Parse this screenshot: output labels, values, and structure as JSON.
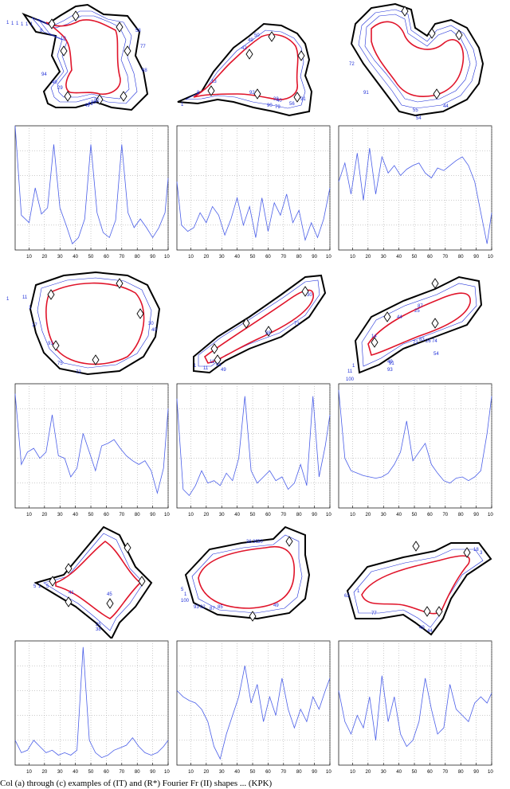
{
  "caption": "Col (a) through (c) examples of (IT) and (R*) Fourier Fr (II) shapes ... (KPK)",
  "colors": {
    "contour": "#000000",
    "series": "#4a5ee8",
    "mean_shape": "#e0142a",
    "inner_contours": "#2030d8",
    "grid": "#9a9a9a",
    "marker": "#000000"
  },
  "chart_data": [
    {
      "type": "line",
      "panel": "row1-col1",
      "xlim": [
        1,
        100
      ],
      "x_ticks": [
        10,
        20,
        30,
        40,
        50,
        60,
        70,
        80,
        90,
        100
      ],
      "x_tick_labels": [
        "10",
        "20",
        "30",
        "40",
        "50",
        "60",
        "70",
        "80",
        "90",
        "100"
      ],
      "series": [
        {
          "x": [
            1,
            5,
            10,
            14,
            18,
            22,
            26,
            30,
            34,
            38,
            42,
            46,
            50,
            54,
            58,
            62,
            66,
            70,
            74,
            78,
            82,
            86,
            90,
            94,
            98,
            100
          ],
          "values": [
            1.0,
            0.28,
            0.22,
            0.5,
            0.29,
            0.34,
            0.85,
            0.34,
            0.2,
            0.05,
            0.1,
            0.25,
            0.85,
            0.3,
            0.14,
            0.1,
            0.24,
            0.85,
            0.3,
            0.18,
            0.25,
            0.18,
            0.1,
            0.18,
            0.3,
            0.58
          ]
        }
      ]
    },
    {
      "type": "line",
      "panel": "row1-col2",
      "xlim": [
        1,
        100
      ],
      "x_ticks": [
        10,
        20,
        30,
        40,
        50,
        60,
        70,
        80,
        90,
        100
      ],
      "x_tick_labels": [
        "10",
        "20",
        "30",
        "40",
        "50",
        "60",
        "70",
        "80",
        "90",
        "100"
      ],
      "series": [
        {
          "x": [
            1,
            4,
            8,
            12,
            16,
            20,
            24,
            28,
            32,
            36,
            40,
            44,
            48,
            52,
            56,
            60,
            64,
            68,
            72,
            76,
            80,
            84,
            88,
            92,
            96,
            100
          ],
          "values": [
            0.55,
            0.2,
            0.15,
            0.18,
            0.3,
            0.22,
            0.35,
            0.28,
            0.12,
            0.25,
            0.42,
            0.2,
            0.35,
            0.1,
            0.42,
            0.15,
            0.38,
            0.28,
            0.45,
            0.22,
            0.32,
            0.08,
            0.22,
            0.1,
            0.25,
            0.5
          ]
        }
      ]
    },
    {
      "type": "line",
      "panel": "row1-col3",
      "xlim": [
        1,
        100
      ],
      "x_ticks": [
        10,
        20,
        30,
        40,
        50,
        60,
        70,
        80,
        90,
        100
      ],
      "x_tick_labels": [
        "10",
        "20",
        "30",
        "40",
        "50",
        "60",
        "70",
        "80",
        "90",
        "100"
      ],
      "series": [
        {
          "x": [
            1,
            5,
            9,
            13,
            17,
            21,
            25,
            29,
            33,
            37,
            41,
            45,
            49,
            53,
            57,
            61,
            65,
            69,
            73,
            77,
            81,
            85,
            89,
            93,
            97,
            100
          ],
          "values": [
            0.55,
            0.7,
            0.45,
            0.78,
            0.4,
            0.82,
            0.45,
            0.75,
            0.62,
            0.68,
            0.6,
            0.65,
            0.68,
            0.7,
            0.62,
            0.58,
            0.66,
            0.64,
            0.68,
            0.72,
            0.75,
            0.68,
            0.55,
            0.3,
            0.05,
            0.3
          ]
        }
      ]
    },
    {
      "type": "line",
      "panel": "row2-col1",
      "xlim": [
        1,
        100
      ],
      "x_ticks": [
        10,
        20,
        30,
        40,
        50,
        60,
        70,
        80,
        90,
        100
      ],
      "x_tick_labels": [
        "10",
        "20",
        "30",
        "40",
        "50",
        "60",
        "70",
        "80",
        "90",
        "100"
      ],
      "series": [
        {
          "x": [
            1,
            5,
            9,
            13,
            17,
            21,
            25,
            29,
            33,
            37,
            41,
            45,
            49,
            53,
            57,
            61,
            65,
            69,
            73,
            77,
            81,
            85,
            89,
            93,
            97,
            100
          ],
          "values": [
            0.92,
            0.35,
            0.45,
            0.48,
            0.4,
            0.45,
            0.75,
            0.42,
            0.4,
            0.25,
            0.32,
            0.6,
            0.45,
            0.3,
            0.5,
            0.52,
            0.55,
            0.48,
            0.42,
            0.38,
            0.35,
            0.38,
            0.3,
            0.12,
            0.32,
            0.8
          ]
        }
      ]
    },
    {
      "type": "line",
      "panel": "row2-col2",
      "xlim": [
        1,
        100
      ],
      "x_ticks": [
        10,
        20,
        30,
        40,
        50,
        60,
        70,
        80,
        90,
        100
      ],
      "x_tick_labels": [
        "10",
        "20",
        "30",
        "40",
        "50",
        "60",
        "70",
        "80",
        "90",
        "100"
      ],
      "series": [
        {
          "x": [
            1,
            5,
            9,
            13,
            17,
            21,
            25,
            29,
            33,
            37,
            41,
            45,
            49,
            53,
            57,
            61,
            65,
            69,
            73,
            77,
            81,
            85,
            89,
            93,
            97,
            100
          ],
          "values": [
            0.88,
            0.15,
            0.1,
            0.18,
            0.3,
            0.2,
            0.22,
            0.18,
            0.28,
            0.22,
            0.4,
            0.9,
            0.3,
            0.2,
            0.25,
            0.3,
            0.22,
            0.25,
            0.15,
            0.2,
            0.35,
            0.18,
            0.9,
            0.25,
            0.5,
            0.75
          ]
        }
      ]
    },
    {
      "type": "line",
      "panel": "row2-col3",
      "xlim": [
        1,
        100
      ],
      "x_ticks": [
        10,
        20,
        30,
        40,
        50,
        60,
        70,
        80,
        90,
        100
      ],
      "x_tick_labels": [
        "10",
        "20",
        "30",
        "40",
        "50",
        "60",
        "70",
        "80",
        "90",
        "100"
      ],
      "series": [
        {
          "x": [
            1,
            5,
            9,
            13,
            17,
            21,
            25,
            29,
            33,
            37,
            41,
            45,
            49,
            53,
            57,
            61,
            65,
            69,
            73,
            77,
            81,
            85,
            89,
            93,
            97,
            100
          ],
          "values": [
            0.95,
            0.4,
            0.3,
            0.28,
            0.26,
            0.25,
            0.24,
            0.25,
            0.28,
            0.35,
            0.45,
            0.7,
            0.38,
            0.45,
            0.52,
            0.35,
            0.28,
            0.22,
            0.2,
            0.24,
            0.25,
            0.22,
            0.25,
            0.3,
            0.6,
            0.9
          ]
        }
      ]
    },
    {
      "type": "line",
      "panel": "row3-col1",
      "xlim": [
        1,
        100
      ],
      "x_ticks": [
        10,
        20,
        30,
        40,
        50,
        60,
        70,
        80,
        90,
        100
      ],
      "x_tick_labels": [
        "10",
        "20",
        "30",
        "40",
        "50",
        "60",
        "70",
        "80",
        "90",
        "100"
      ],
      "series": [
        {
          "x": [
            1,
            5,
            9,
            13,
            17,
            21,
            25,
            29,
            33,
            37,
            41,
            45,
            49,
            53,
            57,
            61,
            65,
            69,
            73,
            77,
            81,
            85,
            89,
            93,
            97,
            100
          ],
          "values": [
            0.2,
            0.1,
            0.12,
            0.2,
            0.15,
            0.1,
            0.12,
            0.08,
            0.1,
            0.08,
            0.12,
            0.95,
            0.2,
            0.1,
            0.06,
            0.08,
            0.12,
            0.14,
            0.16,
            0.22,
            0.15,
            0.1,
            0.08,
            0.1,
            0.15,
            0.2
          ]
        }
      ]
    },
    {
      "type": "line",
      "panel": "row3-col2",
      "xlim": [
        1,
        100
      ],
      "x_ticks": [
        10,
        20,
        30,
        40,
        50,
        60,
        70,
        80,
        90,
        100
      ],
      "x_tick_labels": [
        "10",
        "20",
        "30",
        "40",
        "50",
        "60",
        "70",
        "80",
        "90",
        "100"
      ],
      "series": [
        {
          "x": [
            1,
            5,
            9,
            13,
            17,
            21,
            25,
            29,
            33,
            37,
            41,
            45,
            49,
            53,
            57,
            61,
            65,
            69,
            73,
            77,
            81,
            85,
            89,
            93,
            97,
            100
          ],
          "values": [
            0.6,
            0.55,
            0.52,
            0.5,
            0.45,
            0.35,
            0.15,
            0.05,
            0.25,
            0.4,
            0.55,
            0.8,
            0.5,
            0.65,
            0.35,
            0.55,
            0.4,
            0.7,
            0.45,
            0.3,
            0.45,
            0.35,
            0.55,
            0.45,
            0.6,
            0.7
          ]
        }
      ]
    },
    {
      "type": "line",
      "panel": "row3-col3",
      "xlim": [
        1,
        100
      ],
      "x_ticks": [
        10,
        20,
        30,
        40,
        50,
        60,
        70,
        80,
        90,
        100
      ],
      "x_tick_labels": [
        "10",
        "20",
        "30",
        "40",
        "50",
        "60",
        "70",
        "80",
        "90",
        "100"
      ],
      "series": [
        {
          "x": [
            1,
            5,
            9,
            13,
            17,
            21,
            25,
            29,
            33,
            37,
            41,
            45,
            49,
            53,
            57,
            61,
            65,
            69,
            73,
            77,
            81,
            85,
            89,
            93,
            97,
            100
          ],
          "values": [
            0.6,
            0.35,
            0.25,
            0.4,
            0.3,
            0.55,
            0.2,
            0.72,
            0.35,
            0.55,
            0.25,
            0.15,
            0.2,
            0.35,
            0.7,
            0.45,
            0.25,
            0.3,
            0.65,
            0.45,
            0.4,
            0.35,
            0.5,
            0.55,
            0.5,
            0.58
          ]
        }
      ]
    }
  ],
  "shapes": [
    {
      "panel": "row1-col1",
      "numbers": [
        "1",
        "1",
        "1",
        "1",
        "1",
        "1",
        "8",
        "10",
        "94",
        "49",
        "29",
        "32",
        "38",
        "41",
        "49",
        "58",
        "77",
        "88"
      ]
    },
    {
      "panel": "row1-col2",
      "numbers": [
        "1",
        "8",
        "13",
        "92",
        "38",
        "40",
        "42",
        "49",
        "50",
        "56",
        "90",
        "79",
        "91"
      ]
    },
    {
      "panel": "row1-col3",
      "numbers": [
        "72",
        "91",
        "55",
        "54",
        "44"
      ]
    },
    {
      "panel": "row2-col1",
      "numbers": [
        "1",
        "11",
        "1",
        "17",
        "91",
        "75",
        "72",
        "30",
        "40"
      ]
    },
    {
      "panel": "row2-col2",
      "numbers": [
        "1",
        "11",
        "11",
        "41",
        "49",
        "38",
        "30",
        "71"
      ]
    },
    {
      "panel": "row2-col3",
      "numbers": [
        "1",
        "11",
        "100",
        "14",
        "93",
        "25",
        "44",
        "49",
        "91",
        "87",
        "83",
        "26",
        "74",
        "72",
        "54"
      ]
    },
    {
      "panel": "row3-col1",
      "numbers": [
        "5",
        "1",
        "5",
        "25",
        "38",
        "41",
        "45"
      ]
    },
    {
      "panel": "row3-col2",
      "numbers": [
        "5",
        "1",
        "100",
        "93",
        "92",
        "87",
        "85",
        "36",
        "30",
        "30",
        "49"
      ]
    },
    {
      "panel": "row3-col3",
      "numbers": [
        "1",
        "62",
        "77",
        "49",
        "44",
        "18",
        "3"
      ]
    }
  ]
}
